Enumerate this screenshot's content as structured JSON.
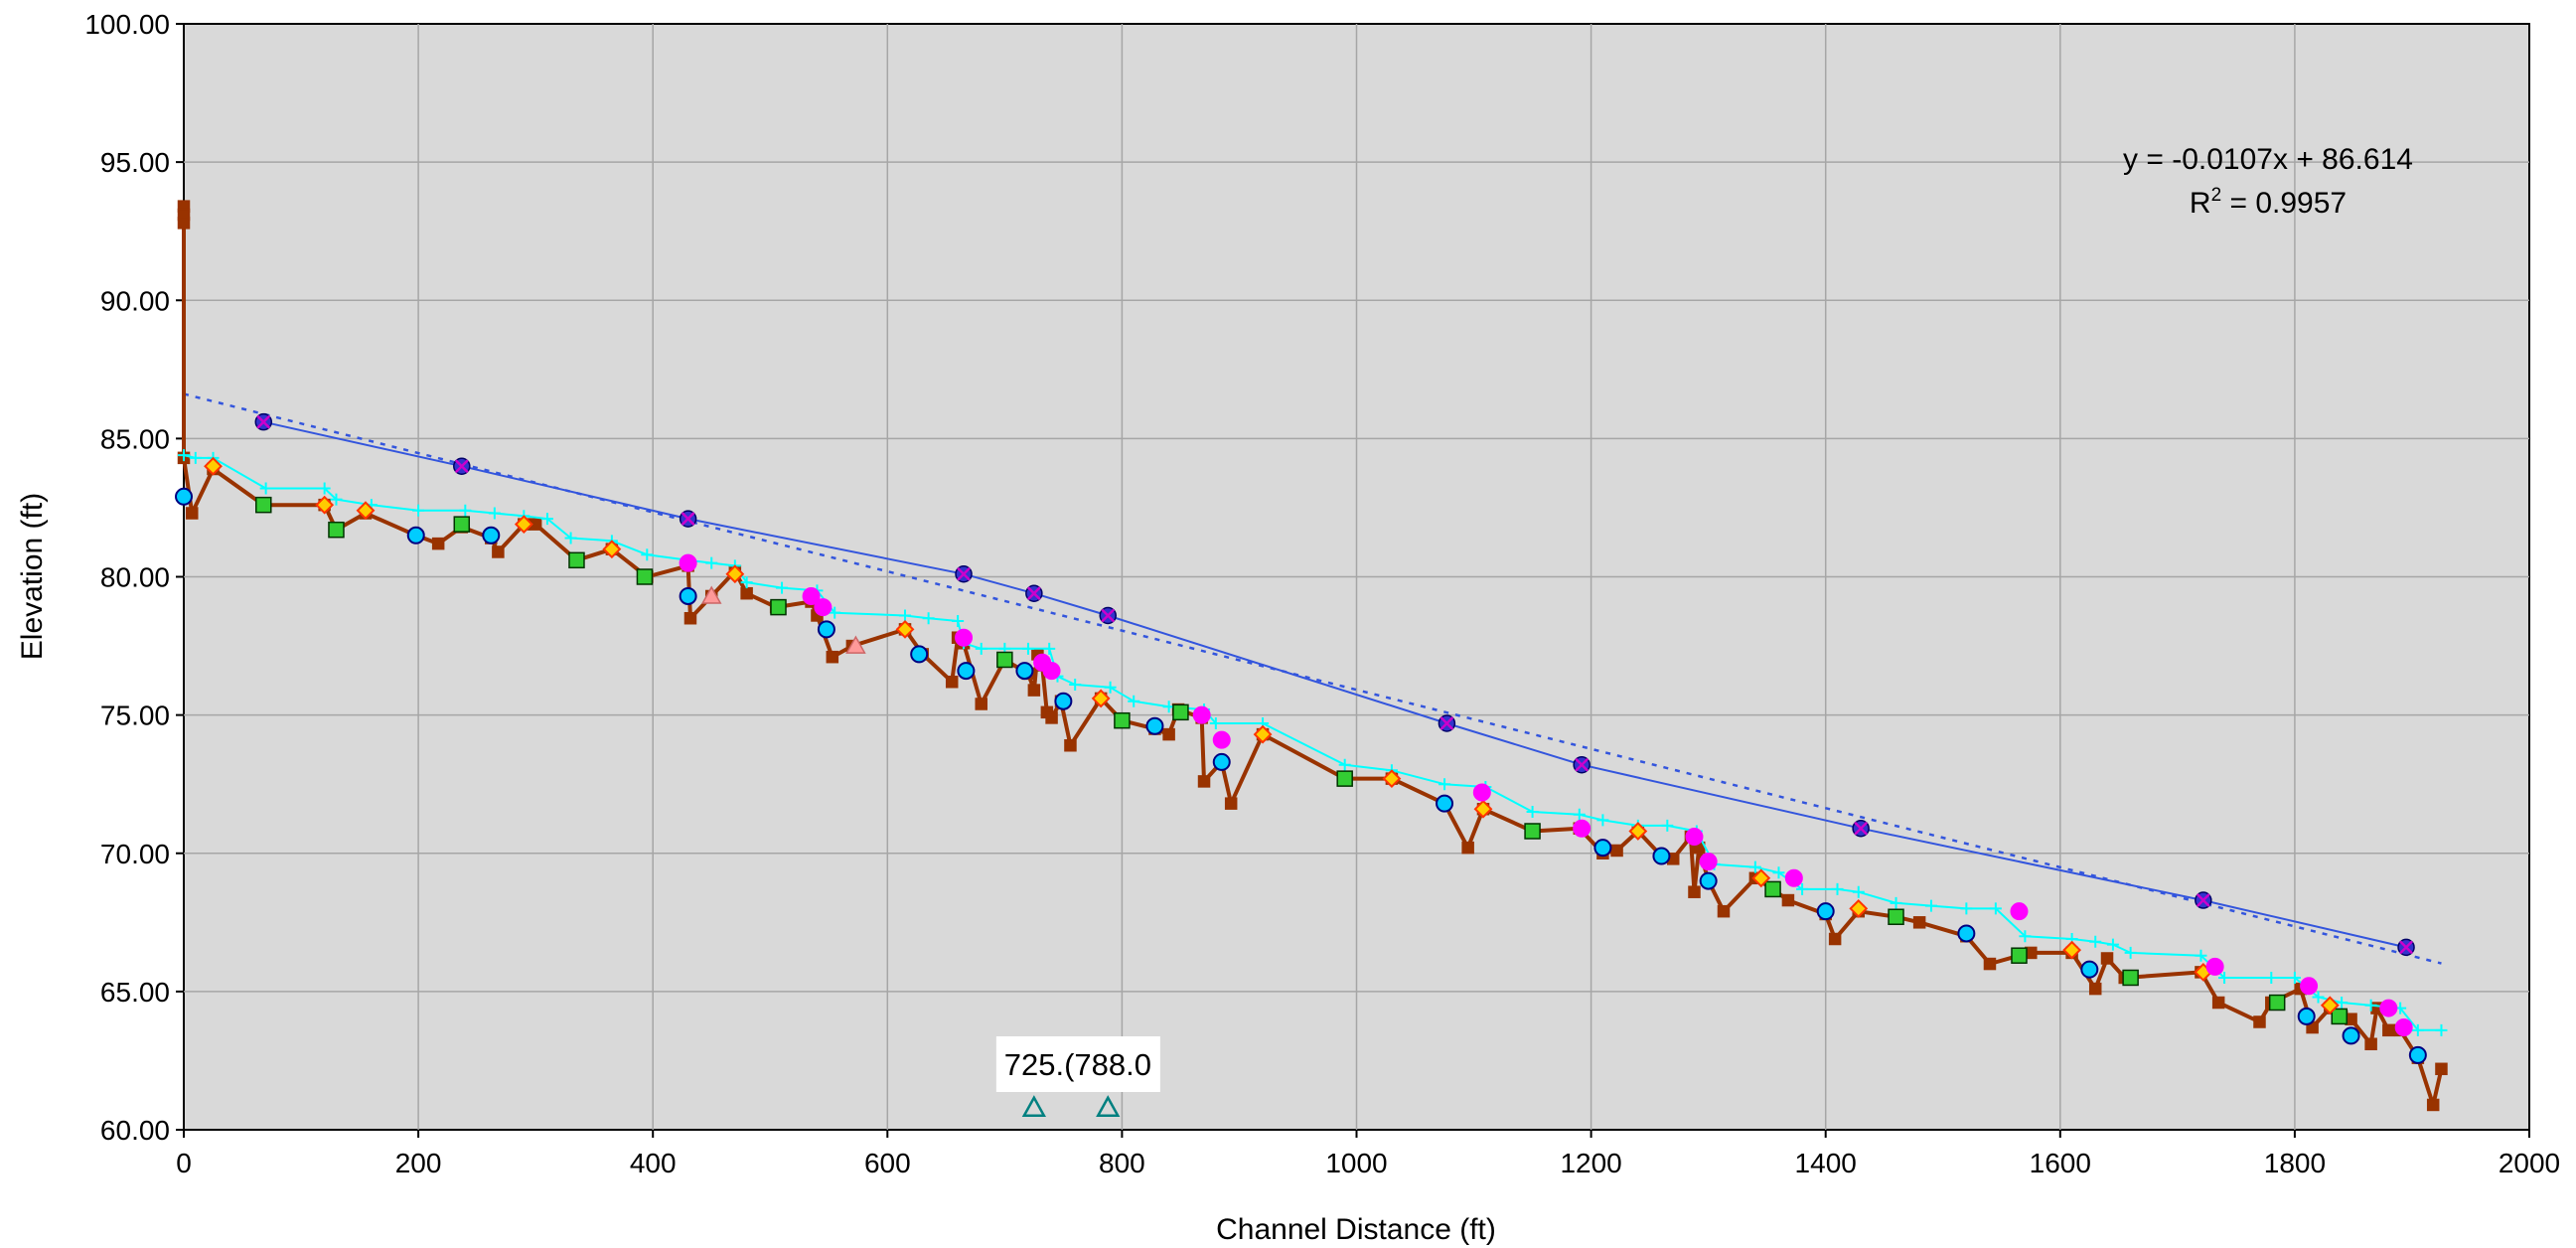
{
  "chart_data": {
    "type": "line",
    "title": "",
    "xlabel": "Channel Distance (ft)",
    "ylabel": "Elevation (ft)",
    "xlim": [
      0,
      2000
    ],
    "ylim": [
      60,
      100
    ],
    "x_ticks": [
      "0",
      "200",
      "400",
      "600",
      "800",
      "1000",
      "1200",
      "1400",
      "1600",
      "1800",
      "2000"
    ],
    "y_ticks": [
      "60.00",
      "65.00",
      "70.00",
      "75.00",
      "80.00",
      "85.00",
      "90.00",
      "95.00",
      "100.00"
    ],
    "grid": true,
    "plot_background": "#d9d9d9",
    "trendline": {
      "equation_text": "y = -0.0107x + 86.614",
      "r2_prefix": "R",
      "r2_exp": "2",
      "r2_suffix": " = 0.9957",
      "slope": -0.0107,
      "intercept": 86.614,
      "x_range": [
        0,
        1925
      ],
      "color": "#3355dd"
    },
    "annotations": [
      {
        "label": "725.(788.0",
        "x": 725
      },
      {
        "marker": "triangle",
        "color": "#008080",
        "points": [
          {
            "x": 725,
            "y": 60.8
          },
          {
            "x": 788,
            "y": 60.8
          }
        ]
      }
    ],
    "series": [
      {
        "role": "thalweg",
        "line": "#993300",
        "marker": "square",
        "fill": "#993300",
        "stroke": "#993300",
        "line_width": 4,
        "points": [
          [
            0,
            93.4
          ],
          [
            0,
            93.1
          ],
          [
            0,
            92.8
          ],
          [
            0,
            84.3
          ],
          [
            7,
            82.3
          ],
          [
            25,
            83.9
          ],
          [
            68,
            82.6
          ],
          [
            120,
            82.6
          ],
          [
            130,
            81.7
          ],
          [
            155,
            82.3
          ],
          [
            198,
            81.5
          ],
          [
            217,
            81.2
          ],
          [
            237,
            81.8
          ],
          [
            262,
            81.4
          ],
          [
            268,
            80.9
          ],
          [
            290,
            81.9
          ],
          [
            300,
            81.9
          ],
          [
            335,
            80.6
          ],
          [
            365,
            81.0
          ],
          [
            395,
            80.0
          ],
          [
            430,
            80.4
          ],
          [
            432,
            78.5
          ],
          [
            450,
            79.3
          ],
          [
            470,
            80.2
          ],
          [
            480,
            79.4
          ],
          [
            505,
            78.9
          ],
          [
            535,
            79.1
          ],
          [
            540,
            78.6
          ],
          [
            553,
            77.1
          ],
          [
            570,
            77.5
          ],
          [
            615,
            78.1
          ],
          [
            630,
            77.2
          ],
          [
            655,
            76.2
          ],
          [
            660,
            77.8
          ],
          [
            665,
            77.6
          ],
          [
            680,
            75.4
          ],
          [
            700,
            77.0
          ],
          [
            720,
            76.5
          ],
          [
            725,
            75.9
          ],
          [
            728,
            77.2
          ],
          [
            732,
            76.8
          ],
          [
            736,
            75.1
          ],
          [
            740,
            74.9
          ],
          [
            748,
            75.5
          ],
          [
            756,
            73.9
          ],
          [
            782,
            75.6
          ],
          [
            800,
            74.8
          ],
          [
            828,
            74.5
          ],
          [
            840,
            74.3
          ],
          [
            848,
            75.2
          ],
          [
            868,
            74.9
          ],
          [
            870,
            72.6
          ],
          [
            885,
            73.3
          ],
          [
            893,
            71.8
          ],
          [
            920,
            74.3
          ],
          [
            990,
            72.7
          ],
          [
            1030,
            72.7
          ],
          [
            1075,
            71.8
          ],
          [
            1095,
            70.2
          ],
          [
            1108,
            71.6
          ],
          [
            1150,
            70.8
          ],
          [
            1190,
            70.9
          ],
          [
            1210,
            70.0
          ],
          [
            1222,
            70.1
          ],
          [
            1240,
            70.8
          ],
          [
            1260,
            69.9
          ],
          [
            1270,
            69.8
          ],
          [
            1285,
            70.6
          ],
          [
            1288,
            68.6
          ],
          [
            1292,
            70.2
          ],
          [
            1300,
            69.0
          ],
          [
            1313,
            67.9
          ],
          [
            1340,
            69.1
          ],
          [
            1355,
            68.7
          ],
          [
            1368,
            68.3
          ],
          [
            1400,
            67.8
          ],
          [
            1408,
            66.9
          ],
          [
            1428,
            67.9
          ],
          [
            1460,
            67.7
          ],
          [
            1480,
            67.5
          ],
          [
            1520,
            67.0
          ],
          [
            1540,
            66.0
          ],
          [
            1565,
            66.3
          ],
          [
            1575,
            66.4
          ],
          [
            1610,
            66.4
          ],
          [
            1630,
            65.1
          ],
          [
            1640,
            66.2
          ],
          [
            1655,
            65.5
          ],
          [
            1720,
            65.7
          ],
          [
            1735,
            64.6
          ],
          [
            1770,
            63.9
          ],
          [
            1780,
            64.6
          ],
          [
            1805,
            65.1
          ],
          [
            1815,
            63.7
          ],
          [
            1830,
            64.4
          ],
          [
            1840,
            64.1
          ],
          [
            1848,
            64.0
          ],
          [
            1865,
            63.1
          ],
          [
            1870,
            64.4
          ],
          [
            1880,
            63.6
          ],
          [
            1890,
            63.6
          ],
          [
            1905,
            62.6
          ],
          [
            1918,
            60.9
          ],
          [
            1925,
            62.2
          ]
        ]
      },
      {
        "role": "water-surface",
        "line": "#00ffff",
        "marker": "plus",
        "fill": "#00ffff",
        "stroke": "#00ffff",
        "line_width": 2,
        "points": [
          [
            0,
            84.4
          ],
          [
            10,
            84.3
          ],
          [
            25,
            84.3
          ],
          [
            70,
            83.2
          ],
          [
            120,
            83.2
          ],
          [
            130,
            82.8
          ],
          [
            160,
            82.6
          ],
          [
            200,
            82.4
          ],
          [
            240,
            82.4
          ],
          [
            265,
            82.3
          ],
          [
            290,
            82.2
          ],
          [
            310,
            82.1
          ],
          [
            330,
            81.4
          ],
          [
            365,
            81.3
          ],
          [
            395,
            80.8
          ],
          [
            430,
            80.6
          ],
          [
            450,
            80.5
          ],
          [
            470,
            80.4
          ],
          [
            480,
            79.8
          ],
          [
            510,
            79.6
          ],
          [
            540,
            79.5
          ],
          [
            555,
            78.7
          ],
          [
            615,
            78.6
          ],
          [
            635,
            78.5
          ],
          [
            660,
            78.4
          ],
          [
            665,
            77.6
          ],
          [
            680,
            77.4
          ],
          [
            700,
            77.4
          ],
          [
            720,
            77.4
          ],
          [
            738,
            77.4
          ],
          [
            745,
            76.4
          ],
          [
            760,
            76.1
          ],
          [
            790,
            76.0
          ],
          [
            810,
            75.5
          ],
          [
            840,
            75.3
          ],
          [
            870,
            75.2
          ],
          [
            880,
            74.7
          ],
          [
            920,
            74.7
          ],
          [
            990,
            73.2
          ],
          [
            1030,
            73.0
          ],
          [
            1075,
            72.5
          ],
          [
            1110,
            72.4
          ],
          [
            1150,
            71.5
          ],
          [
            1190,
            71.4
          ],
          [
            1210,
            71.2
          ],
          [
            1240,
            71.0
          ],
          [
            1265,
            71.0
          ],
          [
            1290,
            70.8
          ],
          [
            1305,
            69.6
          ],
          [
            1340,
            69.5
          ],
          [
            1360,
            69.3
          ],
          [
            1380,
            68.7
          ],
          [
            1410,
            68.7
          ],
          [
            1428,
            68.6
          ],
          [
            1460,
            68.2
          ],
          [
            1490,
            68.1
          ],
          [
            1520,
            68.0
          ],
          [
            1545,
            68.0
          ],
          [
            1570,
            67.0
          ],
          [
            1610,
            66.9
          ],
          [
            1630,
            66.8
          ],
          [
            1645,
            66.7
          ],
          [
            1660,
            66.4
          ],
          [
            1720,
            66.3
          ],
          [
            1740,
            65.5
          ],
          [
            1780,
            65.5
          ],
          [
            1800,
            65.5
          ],
          [
            1820,
            64.8
          ],
          [
            1840,
            64.6
          ],
          [
            1865,
            64.5
          ],
          [
            1890,
            64.4
          ],
          [
            1905,
            63.6
          ],
          [
            1925,
            63.6
          ]
        ]
      },
      {
        "role": "floodprone",
        "line": "#3355dd",
        "marker": "star-circle",
        "fill": "#3333cc",
        "stroke": "#cc00cc",
        "line_width": 2,
        "points": [
          [
            68,
            85.6
          ],
          [
            237,
            84.0
          ],
          [
            430,
            82.1
          ],
          [
            665,
            80.1
          ],
          [
            725,
            79.4
          ],
          [
            788,
            78.6
          ],
          [
            1077,
            74.7
          ],
          [
            1192,
            73.2
          ],
          [
            1430,
            70.9
          ],
          [
            1722,
            68.3
          ],
          [
            1895,
            66.6
          ]
        ]
      },
      {
        "role": "pool",
        "line": "none",
        "marker": "circle",
        "fill": "#00ccff",
        "stroke": "#000080",
        "line_width": 0,
        "points": [
          [
            0,
            82.9
          ],
          [
            198,
            81.5
          ],
          [
            262,
            81.5
          ],
          [
            430,
            79.3
          ],
          [
            548,
            78.1
          ],
          [
            627,
            77.2
          ],
          [
            667,
            76.6
          ],
          [
            717,
            76.6
          ],
          [
            750,
            75.5
          ],
          [
            828,
            74.6
          ],
          [
            885,
            73.3
          ],
          [
            1075,
            71.8
          ],
          [
            1210,
            70.2
          ],
          [
            1260,
            69.9
          ],
          [
            1300,
            69.0
          ],
          [
            1400,
            67.9
          ],
          [
            1520,
            67.1
          ],
          [
            1625,
            65.8
          ],
          [
            1810,
            64.1
          ],
          [
            1848,
            63.4
          ],
          [
            1905,
            62.7
          ]
        ]
      },
      {
        "role": "riffle",
        "line": "none",
        "marker": "square",
        "fill": "#33cc33",
        "stroke": "#003300",
        "line_width": 0,
        "points": [
          [
            68,
            82.6
          ],
          [
            130,
            81.7
          ],
          [
            237,
            81.9
          ],
          [
            335,
            80.6
          ],
          [
            393,
            80.0
          ],
          [
            507,
            78.9
          ],
          [
            700,
            77.0
          ],
          [
            800,
            74.8
          ],
          [
            850,
            75.1
          ],
          [
            990,
            72.7
          ],
          [
            1150,
            70.8
          ],
          [
            1355,
            68.7
          ],
          [
            1460,
            67.7
          ],
          [
            1565,
            66.3
          ],
          [
            1660,
            65.5
          ],
          [
            1785,
            64.6
          ],
          [
            1838,
            64.1
          ]
        ]
      },
      {
        "role": "run",
        "line": "none",
        "marker": "diamond",
        "fill": "#ffcc00",
        "stroke": "#ff3300",
        "line_width": 0,
        "points": [
          [
            25,
            84.0
          ],
          [
            120,
            82.6
          ],
          [
            155,
            82.4
          ],
          [
            290,
            81.9
          ],
          [
            365,
            81.0
          ],
          [
            470,
            80.1
          ],
          [
            615,
            78.1
          ],
          [
            782,
            75.6
          ],
          [
            920,
            74.3
          ],
          [
            1030,
            72.7
          ],
          [
            1108,
            71.6
          ],
          [
            1240,
            70.8
          ],
          [
            1345,
            69.1
          ],
          [
            1428,
            68.0
          ],
          [
            1610,
            66.5
          ],
          [
            1722,
            65.7
          ],
          [
            1830,
            64.5
          ]
        ]
      },
      {
        "role": "glide",
        "line": "none",
        "marker": "circle",
        "fill": "#ff00ff",
        "stroke": "#ff00ff",
        "line_width": 0,
        "points": [
          [
            430,
            80.5
          ],
          [
            535,
            79.3
          ],
          [
            545,
            78.9
          ],
          [
            665,
            77.8
          ],
          [
            732,
            76.9
          ],
          [
            740,
            76.6
          ],
          [
            868,
            75.0
          ],
          [
            885,
            74.1
          ],
          [
            1107,
            72.2
          ],
          [
            1192,
            70.9
          ],
          [
            1288,
            70.6
          ],
          [
            1300,
            69.7
          ],
          [
            1373,
            69.1
          ],
          [
            1565,
            67.9
          ],
          [
            1732,
            65.9
          ],
          [
            1812,
            65.2
          ],
          [
            1880,
            64.4
          ],
          [
            1893,
            63.7
          ]
        ]
      },
      {
        "role": "extra",
        "line": "none",
        "marker": "triangle-filled",
        "fill": "#ff9999",
        "stroke": "#cc6666",
        "line_width": 0,
        "points": [
          [
            450,
            79.3
          ],
          [
            573,
            77.5
          ]
        ]
      }
    ]
  }
}
